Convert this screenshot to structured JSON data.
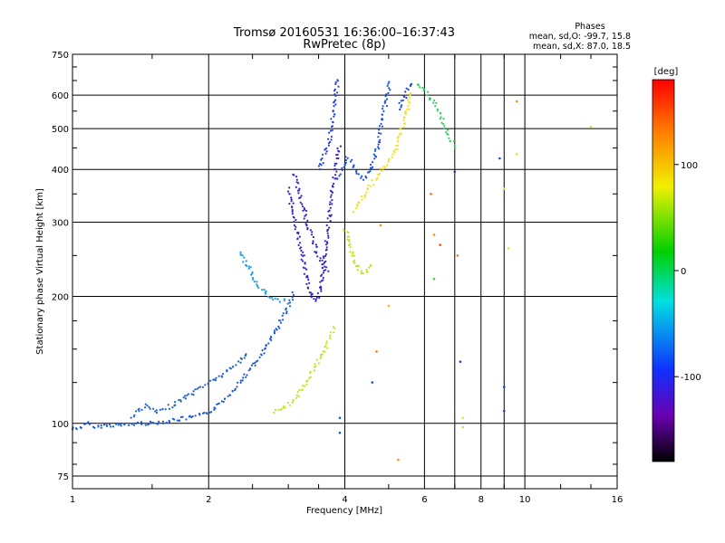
{
  "chart_data": {
    "type": "scatter",
    "title": "Tromsø 20160531 16:36:00–16:37:43",
    "subtitle": "RwPretec (8p)",
    "phases_block": {
      "heading": "Phases",
      "line1": "mean, sd,O: -99.7, 15.8",
      "line2": "mean, sd,X:  87.0, 18.5"
    },
    "xlabel": "Frequency [MHz]",
    "ylabel": "Stationary phase Virtual Height [km]",
    "x_scale": "log",
    "y_scale": "log",
    "xlim": [
      1,
      16
    ],
    "ylim": [
      70,
      750
    ],
    "x_ticks": [
      {
        "value": 1,
        "label": "1"
      },
      {
        "value": 2,
        "label": "2"
      },
      {
        "value": 4,
        "label": "4"
      },
      {
        "value": 6,
        "label": "6"
      },
      {
        "value": 8,
        "label": "8"
      },
      {
        "value": 10,
        "label": "10"
      },
      {
        "value": 16,
        "label": "16"
      }
    ],
    "x_minor_gridlines": [
      7,
      9
    ],
    "y_ticks": [
      {
        "value": 75,
        "label": "75"
      },
      {
        "value": 100,
        "label": "100"
      },
      {
        "value": 200,
        "label": "200"
      },
      {
        "value": 300,
        "label": "300"
      },
      {
        "value": 400,
        "label": "400"
      },
      {
        "value": 500,
        "label": "500"
      },
      {
        "value": 600,
        "label": "600"
      },
      {
        "value": 750,
        "label": "750"
      }
    ],
    "grid": true,
    "colorbar": {
      "label": "[deg]",
      "range": [
        -180,
        180
      ],
      "ticks": [
        {
          "value": 100,
          "label": "100"
        },
        {
          "value": 0,
          "label": "0"
        },
        {
          "value": -100,
          "label": "-100"
        }
      ]
    },
    "traces": [
      {
        "color": "#1a5adc",
        "points": [
          [
            1.0,
            97
          ],
          [
            1.05,
            98
          ],
          [
            1.08,
            100
          ],
          [
            1.12,
            98
          ],
          [
            1.2,
            99
          ],
          [
            1.3,
            99
          ],
          [
            1.4,
            100
          ],
          [
            1.5,
            100
          ],
          [
            1.6,
            101
          ],
          [
            1.7,
            102
          ],
          [
            1.8,
            103
          ],
          [
            1.9,
            104
          ],
          [
            2.0,
            106
          ],
          [
            2.1,
            110
          ],
          [
            2.2,
            116
          ],
          [
            2.35,
            126
          ],
          [
            2.5,
            136
          ],
          [
            2.65,
            148
          ],
          [
            2.78,
            162
          ],
          [
            2.9,
            176
          ],
          [
            3.0,
            190
          ],
          [
            3.1,
            205
          ]
        ]
      },
      {
        "color": "#2060c8",
        "points": [
          [
            1.35,
            104
          ],
          [
            1.45,
            110
          ],
          [
            1.55,
            106
          ],
          [
            1.7,
            112
          ],
          [
            1.85,
            118
          ],
          [
            2.0,
            125
          ],
          [
            2.15,
            130
          ],
          [
            2.3,
            138
          ],
          [
            2.45,
            148
          ]
        ]
      },
      {
        "color": "#1e9ee0",
        "points": [
          [
            2.35,
            255
          ],
          [
            2.45,
            235
          ],
          [
            2.55,
            215
          ],
          [
            2.65,
            205
          ],
          [
            2.75,
            198
          ],
          [
            2.85,
            196
          ],
          [
            2.95,
            195
          ],
          [
            3.0,
            193
          ]
        ]
      },
      {
        "color": "#3a22c8",
        "points": [
          [
            3.0,
            360
          ],
          [
            3.05,
            330
          ],
          [
            3.1,
            305
          ],
          [
            3.15,
            280
          ],
          [
            3.2,
            258
          ],
          [
            3.25,
            238
          ],
          [
            3.3,
            220
          ],
          [
            3.35,
            206
          ],
          [
            3.4,
            198
          ],
          [
            3.45,
            195
          ],
          [
            3.5,
            200
          ],
          [
            3.55,
            215
          ],
          [
            3.6,
            240
          ],
          [
            3.65,
            275
          ],
          [
            3.7,
            310
          ],
          [
            3.75,
            350
          ],
          [
            3.8,
            390
          ],
          [
            3.85,
            430
          ],
          [
            3.9,
            460
          ]
        ]
      },
      {
        "color": "#2a28d0",
        "points": [
          [
            3.1,
            390
          ],
          [
            3.2,
            340
          ],
          [
            3.3,
            300
          ],
          [
            3.4,
            270
          ],
          [
            3.5,
            250
          ],
          [
            3.6,
            235
          ],
          [
            3.7,
            228
          ]
        ]
      },
      {
        "color": "#2040dc",
        "points": [
          [
            3.5,
            400
          ],
          [
            3.6,
            430
          ],
          [
            3.7,
            470
          ],
          [
            3.75,
            520
          ],
          [
            3.8,
            580
          ],
          [
            3.85,
            640
          ],
          [
            3.9,
            660
          ]
        ]
      },
      {
        "color": "#1a4ee0",
        "points": [
          [
            3.85,
            380
          ],
          [
            3.95,
            405
          ],
          [
            4.05,
            425
          ],
          [
            4.15,
            415
          ],
          [
            4.25,
            390
          ],
          [
            4.4,
            380
          ],
          [
            4.55,
            400
          ],
          [
            4.7,
            440
          ],
          [
            4.8,
            500
          ],
          [
            4.9,
            560
          ],
          [
            5.0,
            620
          ],
          [
            5.05,
            650
          ]
        ]
      },
      {
        "color": "#1a40d8",
        "points": [
          [
            5.25,
            560
          ],
          [
            5.4,
            590
          ],
          [
            5.55,
            625
          ],
          [
            5.65,
            640
          ]
        ]
      },
      {
        "color": "#f0e020",
        "points": [
          [
            4.2,
            320
          ],
          [
            4.4,
            345
          ],
          [
            4.6,
            370
          ],
          [
            4.8,
            395
          ],
          [
            5.0,
            415
          ],
          [
            5.2,
            450
          ],
          [
            5.35,
            500
          ],
          [
            5.5,
            560
          ],
          [
            5.6,
            610
          ]
        ]
      },
      {
        "color": "#c0e020",
        "points": [
          [
            4.0,
            290
          ],
          [
            4.1,
            265
          ],
          [
            4.2,
            245
          ],
          [
            4.3,
            232
          ],
          [
            4.4,
            225
          ],
          [
            4.5,
            230
          ],
          [
            4.6,
            240
          ]
        ]
      },
      {
        "color": "#c8e028",
        "points": [
          [
            2.8,
            106
          ],
          [
            3.0,
            110
          ],
          [
            3.2,
            120
          ],
          [
            3.4,
            133
          ],
          [
            3.55,
            145
          ],
          [
            3.7,
            158
          ],
          [
            3.8,
            170
          ]
        ]
      },
      {
        "color": "#30d060",
        "points": [
          [
            5.8,
            640
          ],
          [
            6.1,
            600
          ],
          [
            6.4,
            560
          ],
          [
            6.6,
            520
          ],
          [
            6.8,
            480
          ],
          [
            7.0,
            450
          ]
        ]
      }
    ],
    "scattered_points": [
      {
        "x": 6.2,
        "y": 350,
        "color": "#ff6a00"
      },
      {
        "x": 6.3,
        "y": 280,
        "color": "#ff8c00"
      },
      {
        "x": 6.5,
        "y": 265,
        "color": "#ff5000"
      },
      {
        "x": 7.0,
        "y": 395,
        "color": "#2a30d0"
      },
      {
        "x": 7.1,
        "y": 250,
        "color": "#e08020"
      },
      {
        "x": 7.2,
        "y": 140,
        "color": "#2040d0"
      },
      {
        "x": 7.3,
        "y": 103,
        "color": "#f0e040"
      },
      {
        "x": 7.3,
        "y": 98,
        "color": "#e0d060"
      },
      {
        "x": 8.8,
        "y": 425,
        "color": "#1a40d8"
      },
      {
        "x": 9.0,
        "y": 360,
        "color": "#f0e020"
      },
      {
        "x": 9.2,
        "y": 260,
        "color": "#f0e020"
      },
      {
        "x": 9.0,
        "y": 107,
        "color": "#2040d0"
      },
      {
        "x": 9.0,
        "y": 122,
        "color": "#2040d0"
      },
      {
        "x": 9.6,
        "y": 580,
        "color": "#ff8c00"
      },
      {
        "x": 9.6,
        "y": 435,
        "color": "#e0e020"
      },
      {
        "x": 14.0,
        "y": 505,
        "color": "#f0e020"
      },
      {
        "x": 5.25,
        "y": 82,
        "color": "#ff9020"
      },
      {
        "x": 4.7,
        "y": 148,
        "color": "#ff7020"
      },
      {
        "x": 3.9,
        "y": 103,
        "color": "#1a50d8"
      },
      {
        "x": 3.9,
        "y": 95,
        "color": "#1a50d8"
      },
      {
        "x": 4.6,
        "y": 125,
        "color": "#1a50d8"
      },
      {
        "x": 5.0,
        "y": 190,
        "color": "#ffb020"
      },
      {
        "x": 4.8,
        "y": 295,
        "color": "#ff8c00"
      },
      {
        "x": 6.3,
        "y": 220,
        "color": "#40d040"
      }
    ]
  }
}
